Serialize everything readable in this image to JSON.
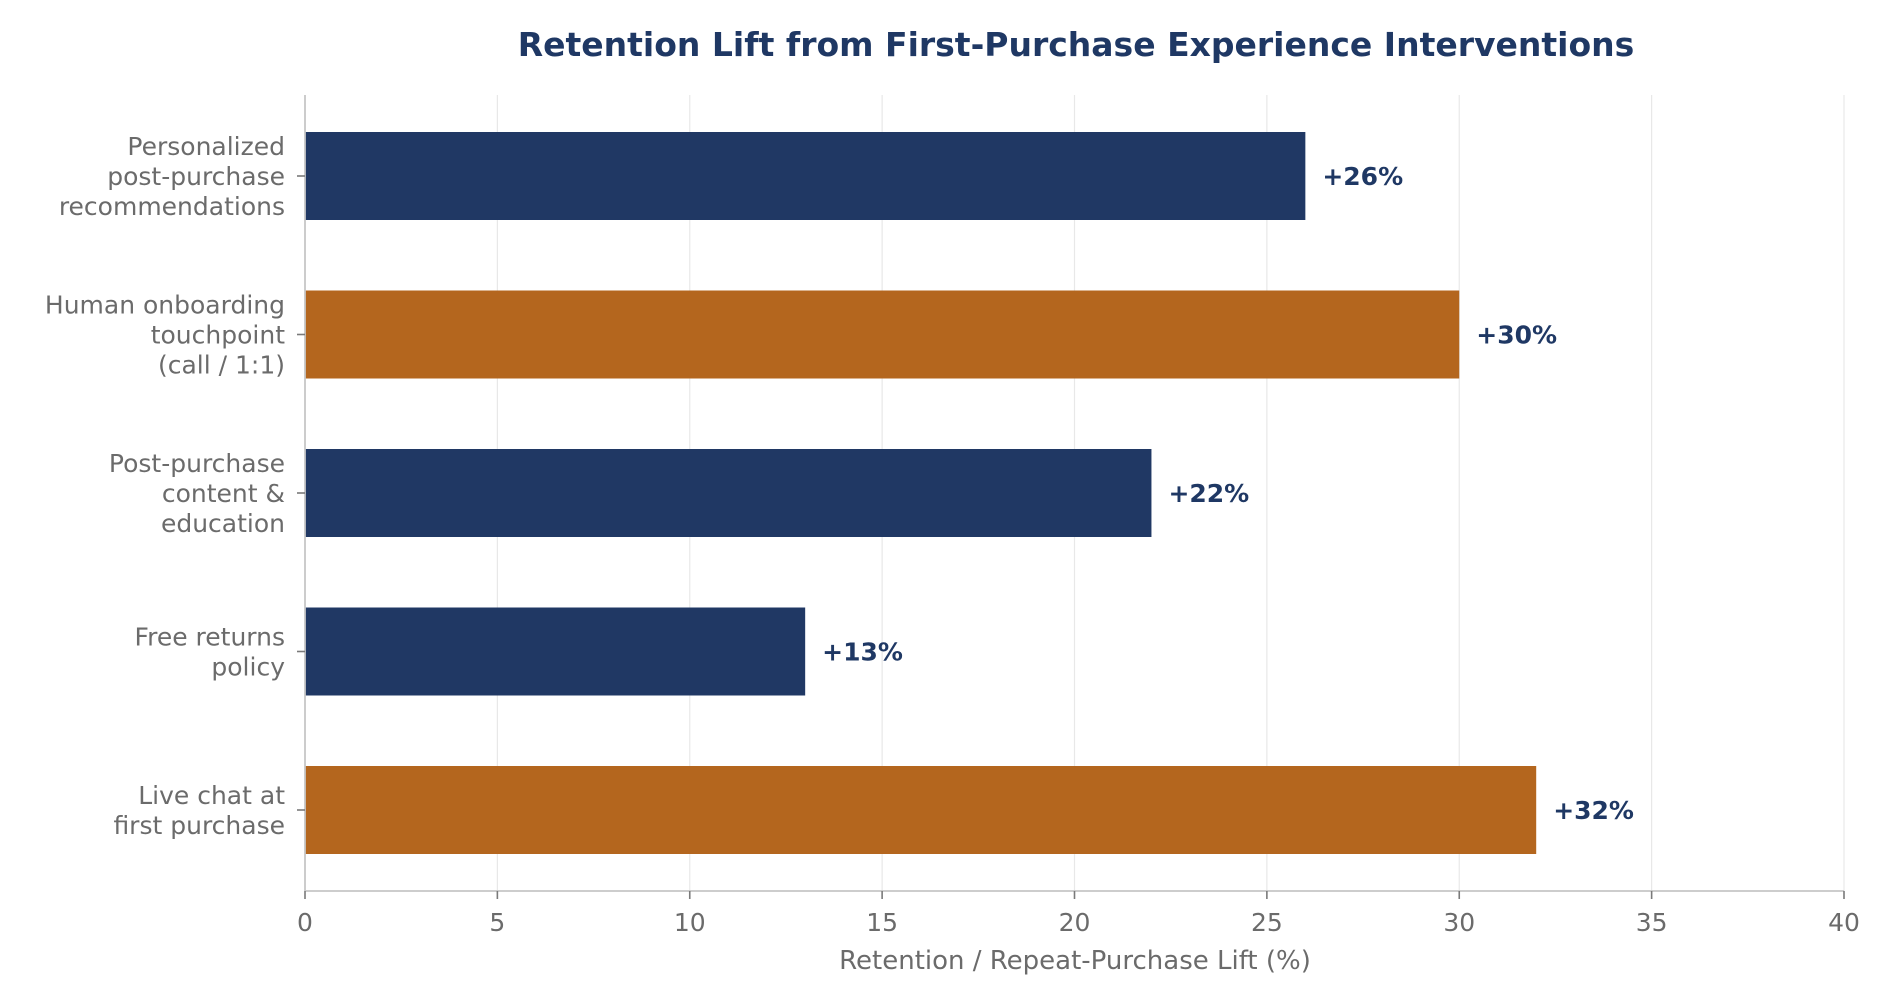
{
  "chart_data": {
    "type": "bar",
    "orientation": "horizontal",
    "title": "Retention Lift from First-Purchase Experience Interventions",
    "xlabel": "Retention / Repeat-Purchase Lift (%)",
    "ylabel": "",
    "xlim": [
      0,
      40
    ],
    "xticks": [
      "0",
      "5",
      "10",
      "15",
      "20",
      "25",
      "30",
      "35",
      "40"
    ],
    "grid": true,
    "categories": [
      [
        "Personalized",
        "post-purchase",
        "recommendations"
      ],
      [
        "Human onboarding",
        "touchpoint",
        "(call / 1:1)"
      ],
      [
        "Post-purchase",
        "content &",
        "education"
      ],
      [
        "Free returns",
        "policy"
      ],
      [
        "Live chat at",
        "first purchase"
      ]
    ],
    "values": [
      26,
      30,
      22,
      13,
      32
    ],
    "data_labels": [
      "+26%",
      "+30%",
      "+22%",
      "+13%",
      "+32%"
    ],
    "colors": [
      "#203864",
      "#b4661e",
      "#203864",
      "#203864",
      "#b4661e"
    ]
  }
}
